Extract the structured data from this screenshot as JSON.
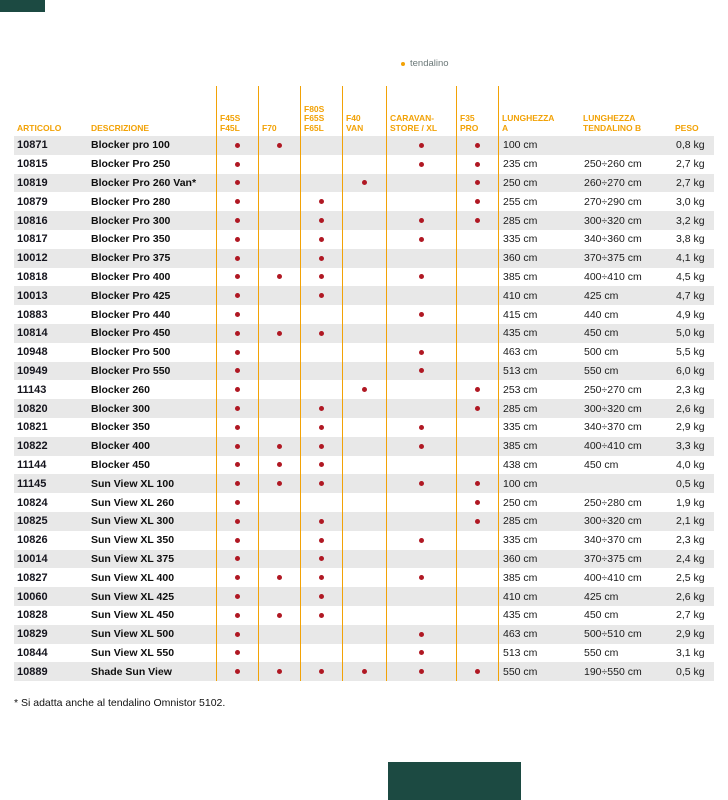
{
  "legend": {
    "text": "tendalino"
  },
  "footnote": "* Si adatta anche al tendalino Omnistor 5102.",
  "colors": {
    "accent_orange": "#F2A206",
    "dot_red": "#B01823",
    "stripe_gray": "#E8E8E8",
    "dark_teal": "#1C4A42"
  },
  "table": {
    "column_headers": {
      "articolo": "ARTICOLO",
      "descrizione": "DESCRIZIONE",
      "compat": [
        {
          "key": "f45s-f45l",
          "lines": [
            "F45S",
            "F45L"
          ]
        },
        {
          "key": "f70",
          "lines": [
            "F70"
          ]
        },
        {
          "key": "f80s-f65s-f65l",
          "lines": [
            "F80S",
            "F65S",
            "F65L"
          ]
        },
        {
          "key": "f40-van",
          "lines": [
            "F40",
            "VAN"
          ]
        },
        {
          "key": "caravanstore-xl",
          "lines": [
            "CARAVAN-",
            "STORE / XL"
          ]
        },
        {
          "key": "f35-pro",
          "lines": [
            "F35",
            "PRO"
          ]
        }
      ],
      "lunghezza_a": {
        "lines": [
          "LUNGHEZZA",
          "A"
        ]
      },
      "lunghezza_b": {
        "lines": [
          "LUNGHEZZA",
          "TENDALINO B"
        ]
      },
      "peso": "PESO"
    },
    "rows": [
      {
        "articolo": "10871",
        "descrizione": "Blocker pro 100",
        "compat": [
          1,
          1,
          0,
          0,
          1,
          1
        ],
        "lunghezza_a": "100 cm",
        "lunghezza_b": "",
        "peso": "0,8 kg"
      },
      {
        "articolo": "10815",
        "descrizione": "Blocker Pro 250",
        "compat": [
          1,
          0,
          0,
          0,
          1,
          1
        ],
        "lunghezza_a": "235 cm",
        "lunghezza_b": "250÷260 cm",
        "peso": "2,7 kg"
      },
      {
        "articolo": "10819",
        "descrizione": "Blocker Pro 260 Van*",
        "compat": [
          1,
          0,
          0,
          1,
          0,
          1
        ],
        "lunghezza_a": "250 cm",
        "lunghezza_b": "260÷270 cm",
        "peso": "2,7 kg"
      },
      {
        "articolo": "10879",
        "descrizione": "Blocker Pro 280",
        "compat": [
          1,
          0,
          1,
          0,
          0,
          1
        ],
        "lunghezza_a": "255 cm",
        "lunghezza_b": "270÷290 cm",
        "peso": "3,0 kg"
      },
      {
        "articolo": "10816",
        "descrizione": "Blocker Pro 300",
        "compat": [
          1,
          0,
          1,
          0,
          1,
          1
        ],
        "lunghezza_a": "285 cm",
        "lunghezza_b": "300÷320 cm",
        "peso": "3,2 kg"
      },
      {
        "articolo": "10817",
        "descrizione": "Blocker Pro 350",
        "compat": [
          1,
          0,
          1,
          0,
          1,
          0
        ],
        "lunghezza_a": "335 cm",
        "lunghezza_b": "340÷360 cm",
        "peso": "3,8 kg"
      },
      {
        "articolo": "10012",
        "descrizione": "Blocker Pro 375",
        "compat": [
          1,
          0,
          1,
          0,
          0,
          0
        ],
        "lunghezza_a": "360 cm",
        "lunghezza_b": "370÷375 cm",
        "peso": "4,1 kg"
      },
      {
        "articolo": "10818",
        "descrizione": "Blocker Pro 400",
        "compat": [
          1,
          1,
          1,
          0,
          1,
          0
        ],
        "lunghezza_a": "385 cm",
        "lunghezza_b": "400÷410 cm",
        "peso": "4,5 kg"
      },
      {
        "articolo": "10013",
        "descrizione": "Blocker Pro 425",
        "compat": [
          1,
          0,
          1,
          0,
          0,
          0
        ],
        "lunghezza_a": "410 cm",
        "lunghezza_b": "425 cm",
        "peso": "4,7 kg"
      },
      {
        "articolo": "10883",
        "descrizione": "Blocker Pro 440",
        "compat": [
          1,
          0,
          0,
          0,
          1,
          0
        ],
        "lunghezza_a": "415 cm",
        "lunghezza_b": "440 cm",
        "peso": "4,9 kg"
      },
      {
        "articolo": "10814",
        "descrizione": "Blocker Pro 450",
        "compat": [
          1,
          1,
          1,
          0,
          0,
          0
        ],
        "lunghezza_a": "435 cm",
        "lunghezza_b": "450 cm",
        "peso": "5,0 kg"
      },
      {
        "articolo": "10948",
        "descrizione": "Blocker Pro 500",
        "compat": [
          1,
          0,
          0,
          0,
          1,
          0
        ],
        "lunghezza_a": "463 cm",
        "lunghezza_b": "500 cm",
        "peso": "5,5 kg"
      },
      {
        "articolo": "10949",
        "descrizione": "Blocker Pro 550",
        "compat": [
          1,
          0,
          0,
          0,
          1,
          0
        ],
        "lunghezza_a": "513 cm",
        "lunghezza_b": "550 cm",
        "peso": "6,0 kg"
      },
      {
        "articolo": "11143",
        "descrizione": "Blocker 260",
        "compat": [
          1,
          0,
          0,
          1,
          0,
          1
        ],
        "lunghezza_a": "253 cm",
        "lunghezza_b": "250÷270 cm",
        "peso": "2,3 kg"
      },
      {
        "articolo": "10820",
        "descrizione": "Blocker 300",
        "compat": [
          1,
          0,
          1,
          0,
          0,
          1
        ],
        "lunghezza_a": "285 cm",
        "lunghezza_b": "300÷320 cm",
        "peso": "2,6 kg"
      },
      {
        "articolo": "10821",
        "descrizione": "Blocker 350",
        "compat": [
          1,
          0,
          1,
          0,
          1,
          0
        ],
        "lunghezza_a": "335 cm",
        "lunghezza_b": "340÷370 cm",
        "peso": "2,9 kg"
      },
      {
        "articolo": "10822",
        "descrizione": "Blocker 400",
        "compat": [
          1,
          1,
          1,
          0,
          1,
          0
        ],
        "lunghezza_a": "385 cm",
        "lunghezza_b": "400÷410 cm",
        "peso": "3,3 kg"
      },
      {
        "articolo": "11144",
        "descrizione": "Blocker 450",
        "compat": [
          1,
          1,
          1,
          0,
          0,
          0
        ],
        "lunghezza_a": "438 cm",
        "lunghezza_b": "450 cm",
        "peso": "4,0 kg"
      },
      {
        "articolo": "11145",
        "descrizione": "Sun View XL 100",
        "compat": [
          1,
          1,
          1,
          0,
          1,
          1
        ],
        "lunghezza_a": "100 cm",
        "lunghezza_b": "",
        "peso": "0,5 kg"
      },
      {
        "articolo": "10824",
        "descrizione": "Sun View XL 260",
        "compat": [
          1,
          0,
          0,
          0,
          0,
          1
        ],
        "lunghezza_a": "250 cm",
        "lunghezza_b": "250÷280 cm",
        "peso": "1,9 kg"
      },
      {
        "articolo": "10825",
        "descrizione": "Sun View XL 300",
        "compat": [
          1,
          0,
          1,
          0,
          0,
          1
        ],
        "lunghezza_a": "285 cm",
        "lunghezza_b": "300÷320 cm",
        "peso": "2,1 kg"
      },
      {
        "articolo": "10826",
        "descrizione": "Sun View XL 350",
        "compat": [
          1,
          0,
          1,
          0,
          1,
          0
        ],
        "lunghezza_a": "335 cm",
        "lunghezza_b": "340÷370 cm",
        "peso": "2,3 kg"
      },
      {
        "articolo": "10014",
        "descrizione": "Sun View XL 375",
        "compat": [
          1,
          0,
          1,
          0,
          0,
          0
        ],
        "lunghezza_a": "360 cm",
        "lunghezza_b": "370÷375 cm",
        "peso": "2,4 kg"
      },
      {
        "articolo": "10827",
        "descrizione": "Sun View XL 400",
        "compat": [
          1,
          1,
          1,
          0,
          1,
          0
        ],
        "lunghezza_a": "385 cm",
        "lunghezza_b": "400÷410 cm",
        "peso": "2,5 kg"
      },
      {
        "articolo": "10060",
        "descrizione": "Sun View XL 425",
        "compat": [
          1,
          0,
          1,
          0,
          0,
          0
        ],
        "lunghezza_a": "410 cm",
        "lunghezza_b": "425 cm",
        "peso": "2,6 kg"
      },
      {
        "articolo": "10828",
        "descrizione": "Sun View XL 450",
        "compat": [
          1,
          1,
          1,
          0,
          0,
          0
        ],
        "lunghezza_a": "435 cm",
        "lunghezza_b": "450 cm",
        "peso": "2,7 kg"
      },
      {
        "articolo": "10829",
        "descrizione": "Sun View XL 500",
        "compat": [
          1,
          0,
          0,
          0,
          1,
          0
        ],
        "lunghezza_a": "463 cm",
        "lunghezza_b": "500÷510 cm",
        "peso": "2,9 kg"
      },
      {
        "articolo": "10844",
        "descrizione": "Sun View XL 550",
        "compat": [
          1,
          0,
          0,
          0,
          1,
          0
        ],
        "lunghezza_a": "513 cm",
        "lunghezza_b": "550 cm",
        "peso": "3,1 kg"
      },
      {
        "articolo": "10889",
        "descrizione": "Shade Sun View",
        "compat": [
          1,
          1,
          1,
          1,
          1,
          1
        ],
        "lunghezza_a": "550 cm",
        "lunghezza_b": "190÷550 cm",
        "peso": "0,5 kg"
      }
    ]
  }
}
